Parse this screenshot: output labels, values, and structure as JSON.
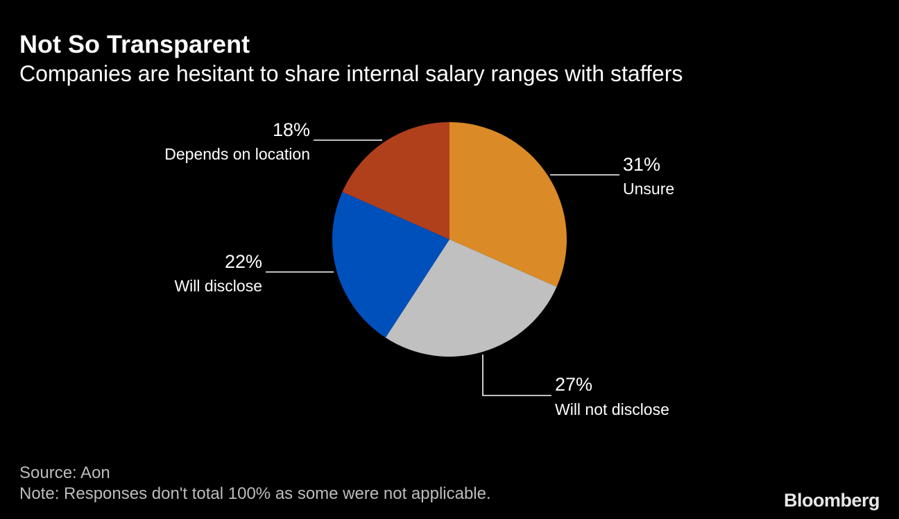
{
  "chart_data": {
    "type": "pie",
    "title": "Not So Transparent",
    "subtitle": "Companies are hesitant to share internal salary ranges with staffers",
    "slices": [
      {
        "label": "Unsure",
        "value": 31,
        "value_label": "31%",
        "color": "#DA8A26"
      },
      {
        "label": "Will not disclose",
        "value": 27,
        "value_label": "27%",
        "color": "#C0C0C0"
      },
      {
        "label": "Will disclose",
        "value": 22,
        "value_label": "22%",
        "color": "#0050BB"
      },
      {
        "label": "Depends on location",
        "value": 18,
        "value_label": "18%",
        "color": "#B03F1C"
      }
    ],
    "start": "top",
    "direction": "clockwise"
  },
  "footer": {
    "source": "Source: Aon",
    "note": "Note: Responses don't total 100% as some were not applicable.",
    "logo": "Bloomberg"
  }
}
